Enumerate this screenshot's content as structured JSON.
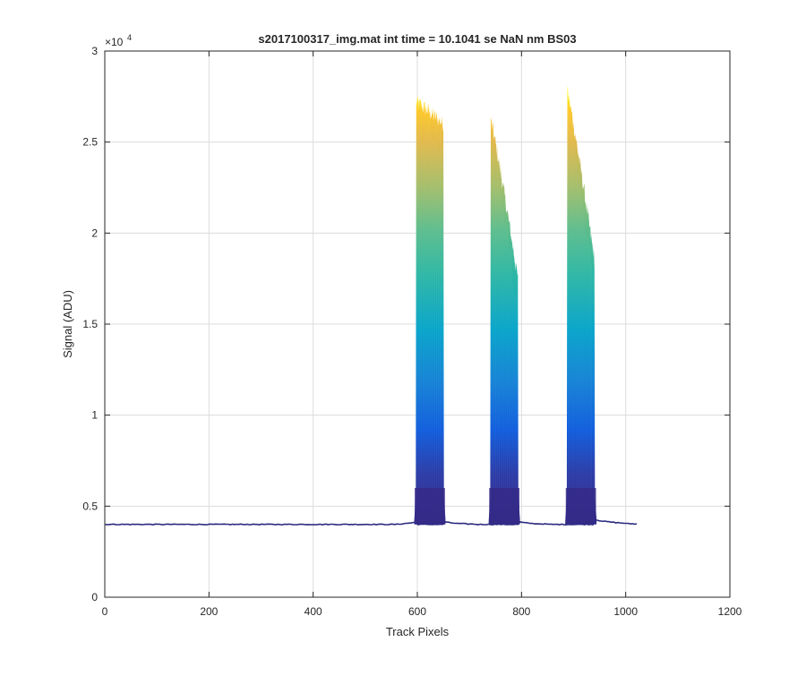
{
  "chart_data": {
    "type": "area",
    "title": "s2017100317_img.mat int time = 10.1041 se  NaN nm BS03",
    "xlabel": "Track Pixels",
    "ylabel": "Signal (ADU)",
    "xlim": [
      0,
      1200
    ],
    "ylim": [
      0,
      30000
    ],
    "x_ticks": [
      0,
      200,
      400,
      600,
      800,
      1000,
      1200
    ],
    "x_tick_labels": [
      "0",
      "200",
      "400",
      "600",
      "800",
      "1000",
      "1200"
    ],
    "y_ticks": [
      0,
      5000,
      10000,
      15000,
      20000,
      25000,
      30000
    ],
    "y_tick_labels": [
      "0",
      "0.5",
      "1",
      "1.5",
      "2",
      "2.5",
      "3"
    ],
    "y_exponent_base": "×10",
    "y_exponent_power": "4",
    "grid": true,
    "baseline_adu": 4000,
    "track_range": [
      1,
      1024
    ],
    "colormap": "parula",
    "colors": [
      "#352a87",
      "#0f5cdd",
      "#1481d6",
      "#06a4ca",
      "#2eb7a4",
      "#87bf77",
      "#d1bb59",
      "#fec832",
      "#f9fb0e"
    ],
    "peaks": [
      {
        "name": "peak 1",
        "x_start": 598,
        "x_end": 650,
        "peak_adu": 27200,
        "right_edge_adu": 26000
      },
      {
        "name": "peak 2",
        "x_start": 741,
        "x_end": 793,
        "peak_adu": 26200,
        "right_edge_adu": 17500
      },
      {
        "name": "peak 3",
        "x_start": 888,
        "x_end": 940,
        "peak_adu": 27800,
        "right_edge_adu": 18500
      }
    ]
  }
}
